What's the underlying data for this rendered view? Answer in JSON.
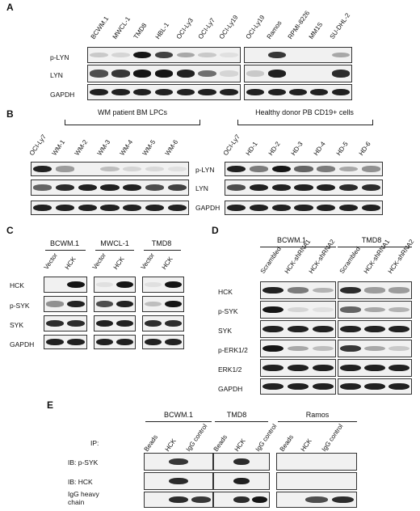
{
  "panels": {
    "a": "A",
    "b": "B",
    "c": "C",
    "d": "D",
    "e": "E"
  },
  "A": {
    "lanes1": [
      "BCWM.1",
      "MWCL-1",
      "TMD8",
      "HBL-1",
      "OCI-Ly3",
      "OCI-Ly7",
      "OCI-Ly19"
    ],
    "lanes2": [
      "OCI-Ly19",
      "Ramos",
      "RPMI-8226",
      "MM1S",
      "SU-DHL-2"
    ],
    "rows": [
      "p-LYN",
      "LYN",
      "GAPDH"
    ]
  },
  "B": {
    "group1": "WM patient BM LPCs",
    "group2": "Healthy donor PB CD19+ cells",
    "lanes1": [
      "OCI-Ly7",
      "WM-1",
      "WM-2",
      "WM-3",
      "WM-4",
      "WM-5",
      "WM-6"
    ],
    "lanes2": [
      "OCI-Ly7",
      "HD-1",
      "HD-2",
      "HD-3",
      "HD-4",
      "HD-5",
      "HD-6"
    ],
    "rows": [
      "p-LYN",
      "LYN",
      "GAPDH"
    ]
  },
  "C": {
    "groups": [
      "BCWM.1",
      "MWCL-1",
      "TMD8"
    ],
    "lanes": [
      "Vector",
      "HCK"
    ],
    "rows": [
      "HCK",
      "p-SYK",
      "SYK",
      "GAPDH"
    ]
  },
  "D": {
    "groups": [
      "BCWM.1",
      "TMD8"
    ],
    "lanes": [
      "Scrambled",
      "HCK-shRNA1",
      "HCK-shRNA2"
    ],
    "rows": [
      "HCK",
      "p-SYK",
      "SYK",
      "p-ERK1/2",
      "ERK1/2",
      "GAPDH"
    ]
  },
  "E": {
    "groups": [
      "BCWM.1",
      "TMD8",
      "Ramos"
    ],
    "ip": "IP:",
    "lanes": [
      "Beads",
      "HCK",
      "IgG control"
    ],
    "rows": [
      "IB: p-SYK",
      "IB: HCK",
      "IgG heavy chain"
    ]
  }
}
